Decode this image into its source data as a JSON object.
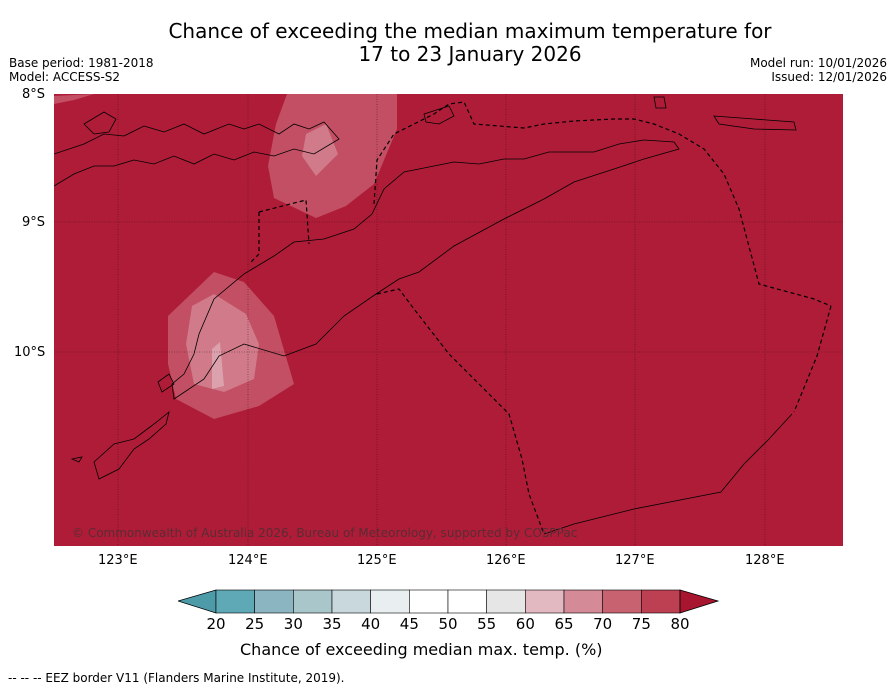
{
  "title_line1": "Chance of exceeding the median maximum temperature for",
  "title_line2": "17 to 23 January 2026",
  "base_period": "Base period: 1981-2018",
  "model": "Model: ACCESS-S2",
  "model_run": "Model run: 10/01/2026",
  "issued": "Issued: 12/01/2026",
  "lat_labels": [
    "8°S",
    "9°S",
    "10°S"
  ],
  "lon_labels": [
    "123°E",
    "124°E",
    "125°E",
    "126°E",
    "127°E",
    "128°E"
  ],
  "copyright": "© Commonwealth of Australia 2026, Bureau of Meteorology, supported by COSPPac",
  "colorbar": {
    "ticks": [
      "20",
      "25",
      "30",
      "35",
      "40",
      "45",
      "50",
      "55",
      "60",
      "65",
      "70",
      "75",
      "80"
    ],
    "colors": [
      "#5fa8b5",
      "#8bb6c1",
      "#a9c6ca",
      "#c8d8dc",
      "#e9eff0",
      "#ffffff",
      "#ffffff",
      "#e6e6e6",
      "#e2b9c1",
      "#d48a97",
      "#c96270",
      "#bd3f52"
    ],
    "under_color": "#4d9aa9",
    "over_color": "#a8152f",
    "label": "Chance of exceeding median max. temp. (%)"
  },
  "footnote": "--  --  -- EEZ border V11 (Flanders Marine Institute, 2019).",
  "colors": {
    "map_fill": "#af1c38",
    "band_70_75": "#c24f63",
    "band_65_70": "#d07a8a",
    "band_60_65": "#dba1ad"
  }
}
